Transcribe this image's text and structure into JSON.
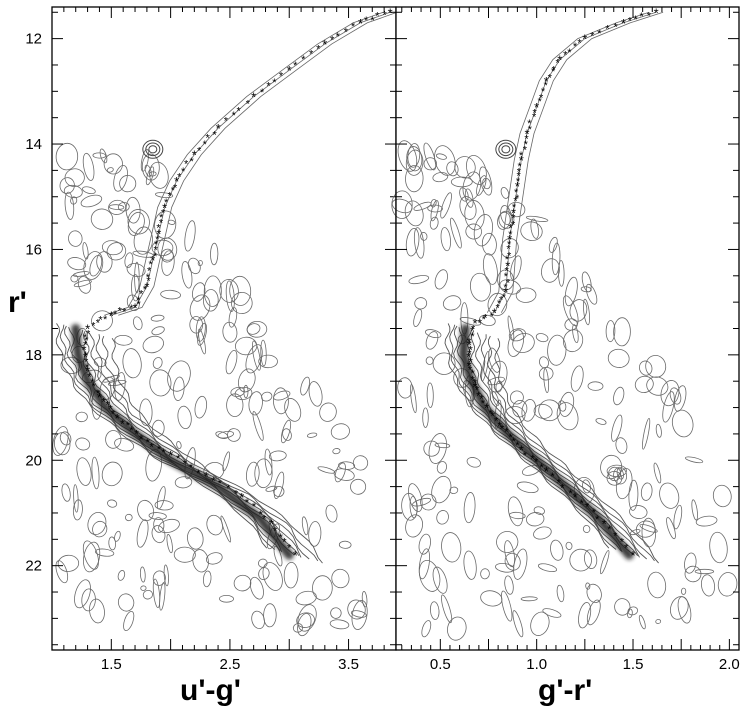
{
  "chart_data": [
    {
      "type": "scatter",
      "panel": "left",
      "xlabel": "u'-g'",
      "ylabel": "r'",
      "xlim": [
        1.0,
        3.9
      ],
      "ylim": [
        23.6,
        11.4
      ],
      "y_inverted": true,
      "x_ticks": [
        "1.5",
        "2.5",
        "3.5"
      ],
      "x_tick_values": [
        1.5,
        2.5,
        3.5
      ],
      "y_ticks": [
        "12",
        "14",
        "16",
        "18",
        "20",
        "22"
      ],
      "y_tick_values": [
        12,
        14,
        16,
        18,
        20,
        22
      ],
      "grid": false,
      "series": [
        {
          "kind": "star density contours",
          "color": "#555555",
          "ridge": [
            {
              "x": 1.2,
              "y": 17.5
            },
            {
              "x": 1.22,
              "y": 18.0
            },
            {
              "x": 1.3,
              "y": 18.5
            },
            {
              "x": 1.45,
              "y": 19.0
            },
            {
              "x": 1.7,
              "y": 19.5
            },
            {
              "x": 2.0,
              "y": 20.0
            },
            {
              "x": 2.4,
              "y": 20.5
            },
            {
              "x": 2.75,
              "y": 21.1
            },
            {
              "x": 3.0,
              "y": 21.8
            }
          ]
        },
        {
          "kind": "isochrone (red asterisks)",
          "color": "#e8191c",
          "points": [
            {
              "x": 3.05,
              "y": 21.8
            },
            {
              "x": 2.85,
              "y": 21.2
            },
            {
              "x": 2.6,
              "y": 20.7
            },
            {
              "x": 2.3,
              "y": 20.3
            },
            {
              "x": 2.0,
              "y": 19.9
            },
            {
              "x": 1.75,
              "y": 19.6
            },
            {
              "x": 1.55,
              "y": 19.2
            },
            {
              "x": 1.4,
              "y": 18.8
            },
            {
              "x": 1.3,
              "y": 18.3
            },
            {
              "x": 1.27,
              "y": 17.9
            },
            {
              "x": 1.3,
              "y": 17.5
            },
            {
              "x": 1.5,
              "y": 17.25
            },
            {
              "x": 1.7,
              "y": 17.1
            },
            {
              "x": 1.8,
              "y": 16.7
            },
            {
              "x": 1.85,
              "y": 16.2
            },
            {
              "x": 1.9,
              "y": 15.7
            },
            {
              "x": 1.95,
              "y": 15.2
            },
            {
              "x": 2.05,
              "y": 14.7
            },
            {
              "x": 2.2,
              "y": 14.2
            },
            {
              "x": 2.4,
              "y": 13.7
            },
            {
              "x": 2.7,
              "y": 13.1
            },
            {
              "x": 3.0,
              "y": 12.6
            },
            {
              "x": 3.3,
              "y": 12.1
            },
            {
              "x": 3.6,
              "y": 11.7
            },
            {
              "x": 3.85,
              "y": 11.5
            }
          ]
        }
      ]
    },
    {
      "type": "scatter",
      "panel": "right",
      "xlabel": "g'-r'",
      "ylabel": "",
      "xlim": [
        0.27,
        2.05
      ],
      "ylim": [
        23.6,
        11.4
      ],
      "y_inverted": true,
      "x_ticks": [
        "0.5",
        "1.0",
        "1.5",
        "2.0"
      ],
      "x_tick_values": [
        0.5,
        1.0,
        1.5,
        2.0
      ],
      "y_ticks": [],
      "y_tick_values": [
        12,
        14,
        16,
        18,
        20,
        22
      ],
      "grid": false,
      "series": [
        {
          "kind": "star density contours",
          "color": "#555555",
          "ridge": [
            {
              "x": 0.63,
              "y": 17.5
            },
            {
              "x": 0.62,
              "y": 18.0
            },
            {
              "x": 0.66,
              "y": 18.5
            },
            {
              "x": 0.73,
              "y": 19.0
            },
            {
              "x": 0.85,
              "y": 19.5
            },
            {
              "x": 1.0,
              "y": 20.0
            },
            {
              "x": 1.15,
              "y": 20.5
            },
            {
              "x": 1.32,
              "y": 21.1
            },
            {
              "x": 1.48,
              "y": 21.8
            }
          ]
        },
        {
          "kind": "isochrone (red asterisks)",
          "color": "#e8191c",
          "points": [
            {
              "x": 1.5,
              "y": 21.8
            },
            {
              "x": 1.35,
              "y": 21.2
            },
            {
              "x": 1.2,
              "y": 20.7
            },
            {
              "x": 1.05,
              "y": 20.2
            },
            {
              "x": 0.92,
              "y": 19.8
            },
            {
              "x": 0.82,
              "y": 19.4
            },
            {
              "x": 0.74,
              "y": 19.0
            },
            {
              "x": 0.68,
              "y": 18.6
            },
            {
              "x": 0.65,
              "y": 18.2
            },
            {
              "x": 0.65,
              "y": 17.8
            },
            {
              "x": 0.68,
              "y": 17.4
            },
            {
              "x": 0.78,
              "y": 17.2
            },
            {
              "x": 0.84,
              "y": 16.8
            },
            {
              "x": 0.85,
              "y": 16.3
            },
            {
              "x": 0.86,
              "y": 15.8
            },
            {
              "x": 0.88,
              "y": 15.3
            },
            {
              "x": 0.9,
              "y": 14.8
            },
            {
              "x": 0.92,
              "y": 14.3
            },
            {
              "x": 0.95,
              "y": 13.8
            },
            {
              "x": 1.0,
              "y": 13.3
            },
            {
              "x": 1.05,
              "y": 12.8
            },
            {
              "x": 1.12,
              "y": 12.4
            },
            {
              "x": 1.25,
              "y": 12.0
            },
            {
              "x": 1.45,
              "y": 11.7
            },
            {
              "x": 1.62,
              "y": 11.5
            }
          ]
        }
      ]
    }
  ]
}
